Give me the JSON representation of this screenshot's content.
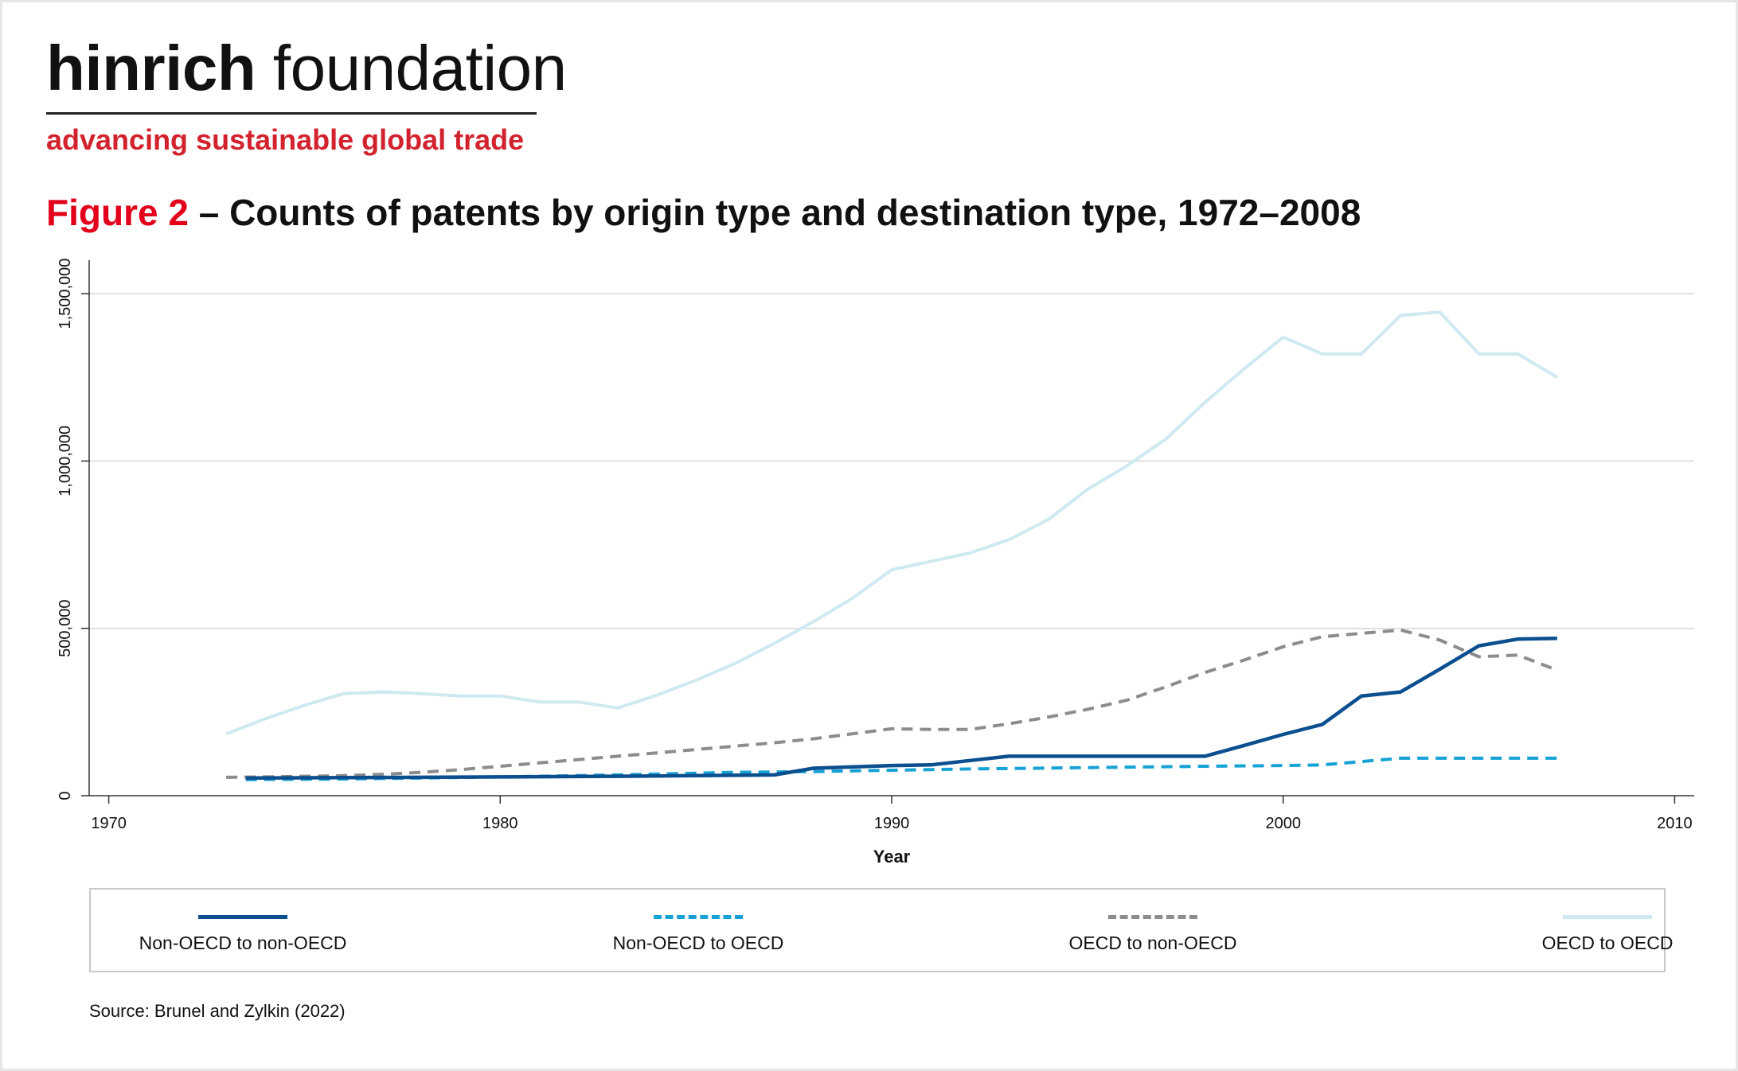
{
  "brand": {
    "name_bold": "hinrich",
    "name_light": "foundation",
    "tagline": "advancing sustainable global trade"
  },
  "figure": {
    "label": "Figure 2",
    "title": "– Counts of patents by origin type and destination type, 1972–2008"
  },
  "source": "Source: Brunel and Zylkin (2022)",
  "chart_data": {
    "type": "line",
    "xlabel": "Year",
    "ylabel": "",
    "xlim": [
      1969.5,
      2010.5
    ],
    "ylim": [
      0,
      1600000
    ],
    "xticks": [
      1970,
      1980,
      1990,
      2000,
      2010
    ],
    "yticks": [
      0,
      500000,
      1000000,
      1500000
    ],
    "xtick_labels": [
      "1970",
      "1980",
      "1990",
      "2000",
      "2010"
    ],
    "ytick_labels": [
      "0",
      "500,000",
      "1,000,000",
      "1,500,000"
    ],
    "grid": "horizontal",
    "legend_position": "bottom",
    "series": [
      {
        "name": "Non-OECD to non-OECD",
        "color": "#0b4f8f",
        "dash": "solid",
        "x": [
          1973.5,
          1976,
          1980,
          1983,
          1985,
          1987,
          1988,
          1990,
          1991,
          1992,
          1993,
          1994,
          1995,
          1996,
          1997,
          1998,
          1999,
          2000,
          2001,
          2002,
          2003,
          2004,
          2005,
          2006,
          2007
        ],
        "y": [
          53000,
          54000,
          56000,
          58000,
          60000,
          62000,
          82000,
          90000,
          92000,
          105000,
          118000,
          118000,
          118000,
          118000,
          118000,
          118000,
          150000,
          183000,
          213000,
          298000,
          310000,
          378000,
          448000,
          468000,
          470000
        ]
      },
      {
        "name": "Non-OECD to OECD",
        "color": "#17a2d6",
        "dash": "dashed",
        "x": [
          1973.5,
          1976,
          1980,
          1983,
          1986,
          1988,
          1990,
          1992,
          1995,
          1998,
          2000,
          2001,
          2002,
          2003,
          2004,
          2006,
          2007
        ],
        "y": [
          48000,
          50000,
          56000,
          62000,
          70000,
          72000,
          76000,
          80000,
          84000,
          88000,
          90000,
          92000,
          102000,
          112000,
          112000,
          112000,
          112000
        ]
      },
      {
        "name": "OECD to non-OECD",
        "color": "#8c8c8c",
        "dash": "dashed",
        "x": [
          1973,
          1974,
          1975,
          1976,
          1977,
          1978,
          1979,
          1980,
          1981,
          1982,
          1983,
          1984,
          1985,
          1986,
          1987,
          1988,
          1989,
          1990,
          1991,
          1992,
          1993,
          1994,
          1995,
          1996,
          1997,
          1998,
          1999,
          2000,
          2001,
          2002,
          2003,
          2004,
          2005,
          2006,
          2007
        ],
        "y": [
          55000,
          56000,
          58000,
          60000,
          64000,
          70000,
          78000,
          88000,
          98000,
          108000,
          118000,
          128000,
          138000,
          148000,
          158000,
          170000,
          185000,
          200000,
          198000,
          198000,
          215000,
          235000,
          258000,
          285000,
          325000,
          368000,
          405000,
          445000,
          475000,
          485000,
          495000,
          465000,
          415000,
          420000,
          375000
        ]
      },
      {
        "name": "OECD to OECD",
        "color": "#cfe9f1",
        "dash": "solid",
        "x": [
          1973,
          1974,
          1975,
          1976,
          1977,
          1978,
          1979,
          1980,
          1981,
          1982,
          1983,
          1984,
          1985,
          1986,
          1987,
          1988,
          1989,
          1990,
          1991,
          1992,
          1993,
          1994,
          1995,
          1996,
          1997,
          1998,
          1999,
          2000,
          2001,
          2002,
          2003,
          2004,
          2005,
          2006,
          2007
        ],
        "y": [
          185000,
          230000,
          270000,
          305000,
          310000,
          305000,
          298000,
          298000,
          280000,
          280000,
          262000,
          300000,
          345000,
          395000,
          455000,
          520000,
          590000,
          675000,
          700000,
          725000,
          765000,
          825000,
          915000,
          985000,
          1065000,
          1175000,
          1275000,
          1370000,
          1320000,
          1320000,
          1435000,
          1445000,
          1320000,
          1320000,
          1250000
        ]
      }
    ]
  }
}
